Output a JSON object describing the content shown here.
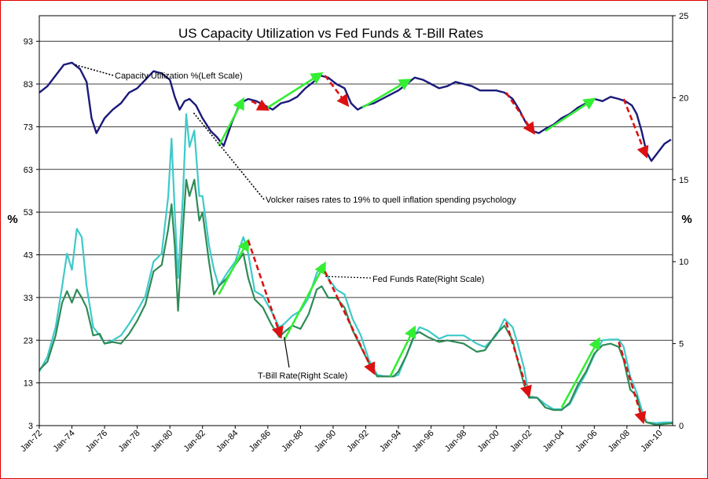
{
  "chart_data": {
    "type": "line",
    "title": "US Capacity Utilization vs Fed Funds & T-Bill Rates",
    "left_axis": {
      "label": "%",
      "ticks": [
        3,
        13,
        23,
        33,
        43,
        53,
        63,
        73,
        83,
        93
      ],
      "range": [
        3,
        99
      ]
    },
    "right_axis": {
      "label": "%",
      "ticks": [
        0,
        5,
        10,
        15,
        20,
        25
      ],
      "range": [
        0,
        25
      ]
    },
    "x_axis": {
      "ticks": [
        "Jan-72",
        "Jan-74",
        "Jan-76",
        "Jan-78",
        "Jan-80",
        "Jan-82",
        "Jan-84",
        "Jan-86",
        "Jan-88",
        "Jan-90",
        "Jan-92",
        "Jan-94",
        "Jan-96",
        "Jan-98",
        "Jan-00",
        "Jan-02",
        "Jan-04",
        "Jan-06",
        "Jan-08",
        "Jan-10"
      ],
      "range": [
        1972,
        2010.8
      ]
    },
    "grid": true,
    "series": [
      {
        "name": "Capacity Utilization %(Left Scale)",
        "axis": "left",
        "color": "#1a1a7a",
        "x": [
          1972.0,
          1972.5,
          1973.0,
          1973.5,
          1974.0,
          1974.5,
          1974.9,
          1975.2,
          1975.5,
          1976.0,
          1976.5,
          1977.0,
          1977.5,
          1978.0,
          1978.5,
          1979.0,
          1979.5,
          1980.0,
          1980.3,
          1980.6,
          1980.9,
          1981.2,
          1981.6,
          1982.0,
          1982.5,
          1982.9,
          1983.3,
          1983.8,
          1984.3,
          1984.8,
          1985.3,
          1985.8,
          1986.3,
          1986.8,
          1987.3,
          1987.8,
          1988.3,
          1988.8,
          1989.2,
          1989.7,
          1990.2,
          1990.7,
          1991.1,
          1991.5,
          1992.0,
          1992.5,
          1993.0,
          1993.5,
          1994.0,
          1994.5,
          1995.0,
          1995.5,
          1996.0,
          1996.5,
          1997.0,
          1997.5,
          1998.0,
          1998.5,
          1999.0,
          1999.5,
          2000.0,
          2000.5,
          2001.0,
          2001.4,
          2001.8,
          2002.2,
          2002.6,
          2003.0,
          2003.5,
          2004.0,
          2004.5,
          2005.0,
          2005.5,
          2006.0,
          2006.5,
          2007.0,
          2007.5,
          2007.9,
          2008.3,
          2008.6,
          2008.9,
          2009.2,
          2009.5,
          2009.9,
          2010.3,
          2010.7
        ],
        "values": [
          81,
          82.5,
          85,
          87.5,
          88,
          86.5,
          83.5,
          75,
          71.5,
          75,
          77,
          78.5,
          81,
          82,
          84,
          86,
          85.5,
          84,
          80,
          77,
          79,
          79.5,
          78,
          75,
          72,
          70.5,
          68.5,
          74,
          78.5,
          79.5,
          79,
          78,
          77,
          78.5,
          79,
          80,
          82,
          83.5,
          85,
          84.5,
          83,
          82,
          78.5,
          77,
          78,
          78.5,
          79.5,
          80.5,
          81.5,
          83,
          84.5,
          84,
          83,
          82,
          82.5,
          83.5,
          83,
          82.5,
          81.5,
          81.5,
          81.5,
          81,
          79.5,
          77,
          74,
          72,
          71.5,
          72.5,
          73.5,
          75,
          76,
          77.5,
          78.5,
          79.5,
          79,
          80,
          79.5,
          79,
          78,
          76,
          72,
          67,
          65,
          67,
          69,
          70
        ]
      },
      {
        "name": "Fed Funds Rate(Right Scale)",
        "axis": "right",
        "color": "#3fc9c9",
        "x": [
          1972.0,
          1972.5,
          1973.0,
          1973.4,
          1973.7,
          1974.0,
          1974.3,
          1974.6,
          1974.9,
          1975.3,
          1975.7,
          1976.0,
          1976.5,
          1977.0,
          1977.5,
          1978.0,
          1978.5,
          1979.0,
          1979.5,
          1979.9,
          1980.1,
          1980.3,
          1980.5,
          1980.8,
          1981.0,
          1981.2,
          1981.5,
          1981.8,
          1982.0,
          1982.4,
          1982.7,
          1983.0,
          1983.5,
          1984.0,
          1984.5,
          1984.8,
          1985.2,
          1985.7,
          1986.2,
          1986.7,
          1987.0,
          1987.5,
          1988.0,
          1988.5,
          1989.0,
          1989.3,
          1989.7,
          1990.2,
          1990.7,
          1991.2,
          1991.7,
          1992.2,
          1992.7,
          1993.2,
          1993.7,
          1994.0,
          1994.5,
          1995.0,
          1995.3,
          1995.8,
          1996.5,
          1997.0,
          1998.0,
          1998.8,
          1999.3,
          2000.0,
          2000.5,
          2001.0,
          2001.3,
          2001.7,
          2002.0,
          2002.5,
          2003.0,
          2003.5,
          2004.0,
          2004.5,
          2005.0,
          2005.5,
          2006.0,
          2006.5,
          2007.0,
          2007.5,
          2007.8,
          2008.2,
          2008.6,
          2008.9,
          2009.2,
          2009.8,
          2010.3,
          2010.8
        ],
        "values": [
          3.3,
          4.2,
          6.0,
          8.5,
          10.5,
          9.5,
          12.0,
          11.5,
          8.5,
          6.0,
          5.5,
          5.0,
          5.2,
          5.5,
          6.2,
          7.0,
          7.9,
          10.0,
          10.5,
          14.0,
          17.5,
          13.0,
          9.0,
          14.0,
          19.0,
          17.0,
          18.0,
          14.0,
          14.0,
          11.0,
          9.5,
          8.5,
          9.3,
          10.0,
          11.5,
          10.5,
          8.2,
          7.9,
          7.0,
          6.0,
          6.2,
          6.7,
          7.0,
          7.8,
          9.3,
          9.8,
          9.0,
          8.3,
          8.0,
          6.5,
          5.5,
          4.0,
          3.1,
          3.0,
          3.0,
          3.1,
          4.3,
          5.5,
          6.0,
          5.8,
          5.3,
          5.5,
          5.5,
          5.0,
          4.8,
          5.5,
          6.5,
          6.0,
          5.0,
          3.5,
          1.8,
          1.7,
          1.3,
          1.0,
          1.0,
          1.3,
          2.3,
          3.2,
          4.3,
          5.2,
          5.25,
          5.25,
          4.8,
          3.0,
          2.0,
          1.0,
          0.2,
          0.15,
          0.2,
          0.2
        ]
      },
      {
        "name": "T-Bill Rate(Right Scale)",
        "axis": "right",
        "color": "#2e8b57",
        "x": [
          1972.0,
          1972.5,
          1973.0,
          1973.4,
          1973.7,
          1974.0,
          1974.3,
          1974.6,
          1974.9,
          1975.3,
          1975.7,
          1976.0,
          1976.5,
          1977.0,
          1977.5,
          1978.0,
          1978.5,
          1979.0,
          1979.5,
          1979.9,
          1980.1,
          1980.3,
          1980.5,
          1980.8,
          1981.0,
          1981.2,
          1981.5,
          1981.8,
          1982.0,
          1982.4,
          1982.7,
          1983.0,
          1983.5,
          1984.0,
          1984.5,
          1984.8,
          1985.2,
          1985.7,
          1986.2,
          1986.7,
          1987.0,
          1987.5,
          1988.0,
          1988.5,
          1989.0,
          1989.3,
          1989.7,
          1990.2,
          1990.7,
          1991.2,
          1991.7,
          1992.2,
          1992.7,
          1993.2,
          1993.7,
          1994.0,
          1994.5,
          1995.0,
          1995.3,
          1995.8,
          1996.5,
          1997.0,
          1998.0,
          1998.8,
          1999.3,
          2000.0,
          2000.5,
          2001.0,
          2001.3,
          2001.7,
          2002.0,
          2002.5,
          2003.0,
          2003.5,
          2004.0,
          2004.5,
          2005.0,
          2005.5,
          2006.0,
          2006.5,
          2007.0,
          2007.5,
          2007.8,
          2008.2,
          2008.6,
          2008.9,
          2009.2,
          2009.8,
          2010.3,
          2010.8
        ],
        "values": [
          3.4,
          3.9,
          5.5,
          7.5,
          8.2,
          7.5,
          8.3,
          7.8,
          7.2,
          5.5,
          5.6,
          5.0,
          5.1,
          5.0,
          5.6,
          6.4,
          7.4,
          9.4,
          9.8,
          12.0,
          13.5,
          11.0,
          7.0,
          12.0,
          15.0,
          14.0,
          15.0,
          12.5,
          13.0,
          10.0,
          8.0,
          8.5,
          9.0,
          9.8,
          10.5,
          9.0,
          7.7,
          7.2,
          6.2,
          5.4,
          5.7,
          6.1,
          5.9,
          6.8,
          8.3,
          8.5,
          7.8,
          7.8,
          7.2,
          5.8,
          4.8,
          3.8,
          3.0,
          3.0,
          3.0,
          3.3,
          4.3,
          5.6,
          5.7,
          5.4,
          5.1,
          5.2,
          5.0,
          4.5,
          4.6,
          5.6,
          6.1,
          5.2,
          4.0,
          2.5,
          1.7,
          1.7,
          1.1,
          0.95,
          0.95,
          1.4,
          2.5,
          3.3,
          4.4,
          4.9,
          5.0,
          4.8,
          4.0,
          2.2,
          1.8,
          0.6,
          0.2,
          0.05,
          0.1,
          0.15
        ]
      }
    ],
    "annotations": [
      "Capacity Utilization %(Left Scale)",
      "Volcker raises rates to 19% to quell inflation spending psychology",
      "Fed Funds Rate(Right Scale)",
      "T-Bill Rate(Right Scale)"
    ],
    "trend_arrows": {
      "up_color": "#33ee33",
      "down_color": "#dd1111",
      "left_up": [
        [
          1983.0,
          68.5,
          1984.5,
          79.5
        ],
        [
          1986.0,
          77.5,
          1989.3,
          85.5
        ],
        [
          1991.8,
          77.5,
          1994.7,
          84.0
        ],
        [
          2003.0,
          72.0,
          2006.0,
          79.5
        ]
      ],
      "left_down": [
        [
          1985.0,
          79.0,
          1986.0,
          77.0
        ],
        [
          1989.5,
          85.0,
          1990.9,
          78.0
        ],
        [
          2000.6,
          81.0,
          2002.3,
          71.5
        ],
        [
          2007.8,
          79.5,
          2009.2,
          66.0
        ]
      ],
      "right_up": [
        [
          1983.0,
          8.0,
          1984.8,
          11.3
        ],
        [
          1987.0,
          5.2,
          1989.5,
          9.9
        ],
        [
          1993.5,
          3.0,
          1995.0,
          6.0
        ],
        [
          2004.0,
          1.1,
          2006.3,
          5.3
        ]
      ],
      "right_down": [
        [
          1984.8,
          11.3,
          1986.8,
          5.4
        ],
        [
          1989.5,
          9.4,
          1992.5,
          3.2
        ],
        [
          2000.6,
          6.3,
          2002.0,
          1.8
        ],
        [
          2007.5,
          5.1,
          2009.0,
          0.2
        ]
      ]
    }
  }
}
